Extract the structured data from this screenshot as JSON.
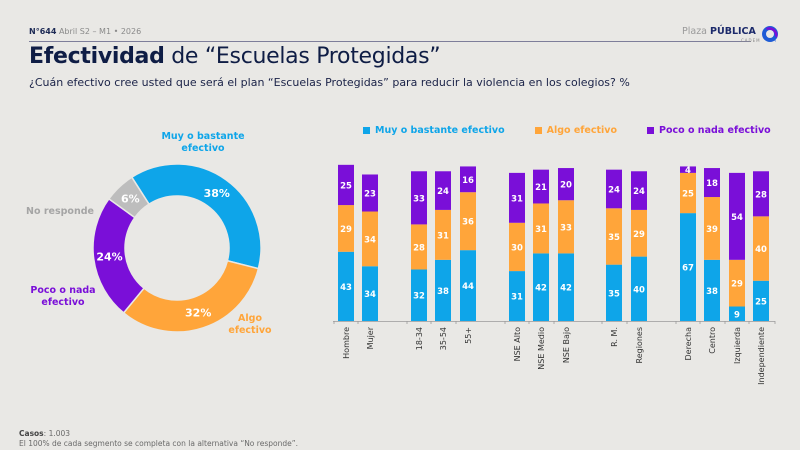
{
  "header": {
    "issue": "N°644",
    "period": "Abril S2 – M1 • 2026",
    "brand_light": "Plaza",
    "brand_bold": "PÚBLICA",
    "brand_sub": "CADEM"
  },
  "title": {
    "bold": "Efectividad",
    "rest": " de “Escuelas Protegidas”"
  },
  "subtitle": "¿Cuán efectivo cree usted que será el plan “Escuelas Protegidas” para reducir la violencia en los colegios? %",
  "colors": {
    "muy": "#0ea5e9",
    "algo": "#ffa53a",
    "poco": "#7a0fd8",
    "no_responde": "#bdbdbd"
  },
  "footer": {
    "casos_label": "Casos",
    "casos_value": ": 1.003",
    "note": "El 100% de cada segmento se completa con la alternativa “No responde”."
  },
  "chart_data": [
    {
      "type": "pie",
      "subtype": "donut",
      "title": "",
      "slices": [
        {
          "name": "Muy o bastante efectivo",
          "value": 38,
          "label": "38%",
          "color": "#0ea5e9"
        },
        {
          "name": "Algo efectivo",
          "value": 32,
          "label": "32%",
          "color": "#ffa53a"
        },
        {
          "name": "Poco o nada efectivo",
          "value": 24,
          "label": "24%",
          "color": "#7a0fd8"
        },
        {
          "name": "No responde",
          "value": 6,
          "label": "6%",
          "color": "#bdbdbd"
        }
      ],
      "outer_labels": {
        "muy": "Muy o bastante efectivo",
        "algo": "Algo efectivo",
        "poco": "Poco o nada efectivo",
        "no_responde": "No responde"
      }
    },
    {
      "type": "bar",
      "stacked": true,
      "title": "",
      "xlabel": "",
      "ylabel": "",
      "ylim": [
        0,
        100
      ],
      "grid": false,
      "legend": "top",
      "categories": [
        "Hombre",
        "Mujer",
        "18-34",
        "35-54",
        "55+",
        "NSE Alto",
        "NSE Medio",
        "NSE Bajo",
        "R. M.",
        "Regiones",
        "Derecha",
        "Centro",
        "Izquierda",
        "Independiente"
      ],
      "groups": [
        [
          0,
          1
        ],
        [
          2,
          3,
          4
        ],
        [
          5,
          6,
          7
        ],
        [
          8,
          9
        ],
        [
          10,
          11,
          12,
          13
        ]
      ],
      "series": [
        {
          "name": "Muy o bastante efectivo",
          "color": "#0ea5e9",
          "values": [
            43,
            34,
            32,
            38,
            44,
            31,
            42,
            42,
            35,
            40,
            67,
            38,
            9,
            25
          ]
        },
        {
          "name": "Algo efectivo",
          "color": "#ffa53a",
          "values": [
            29,
            34,
            28,
            31,
            36,
            30,
            31,
            33,
            35,
            29,
            25,
            39,
            29,
            40
          ]
        },
        {
          "name": "Poco o nada efectivo",
          "color": "#7a0fd8",
          "values": [
            25,
            23,
            33,
            24,
            16,
            31,
            21,
            20,
            24,
            24,
            4,
            18,
            54,
            28
          ]
        }
      ]
    }
  ]
}
